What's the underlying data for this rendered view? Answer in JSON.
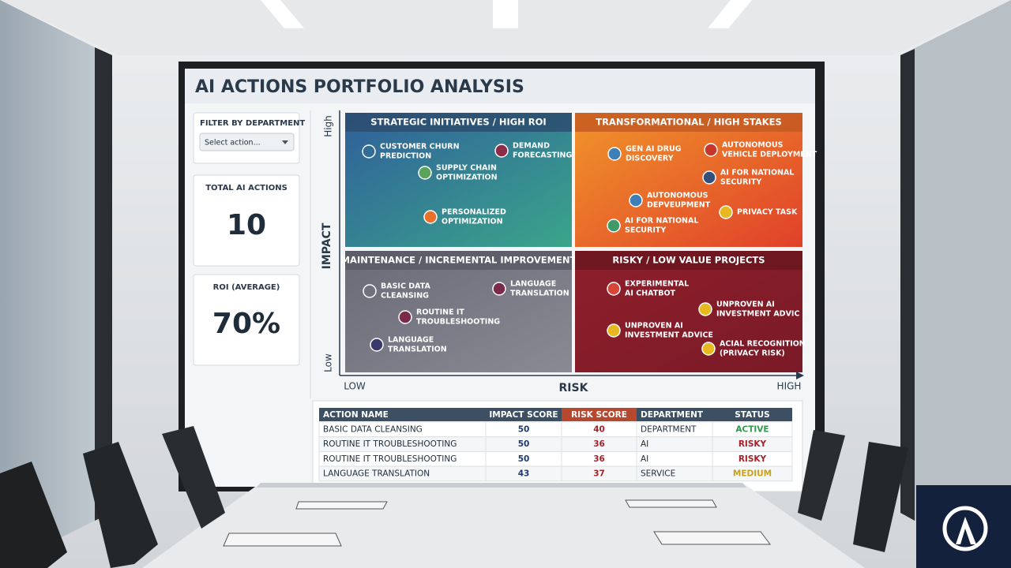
{
  "header": {
    "title": "AI ACTIONS PORTFOLIO ANALYSIS"
  },
  "filter": {
    "label": "FILTER BY DEPARTMENT",
    "placeholder": "Select action..."
  },
  "cards": [
    {
      "label": "TOTAL AI ACTIONS",
      "value": "10"
    },
    {
      "label": "ROI (AVERAGE)",
      "value": "70%"
    }
  ],
  "matrix": {
    "y_axis": {
      "label": "IMPACT",
      "high": "High",
      "low": "Low"
    },
    "x_axis": {
      "label": "RISK",
      "low": "LOW",
      "high": "HIGH"
    },
    "quadrants": [
      {
        "title": "STRATEGIC INITIATIVES / HIGH ROI",
        "items": [
          {
            "label": [
              "CUSTOMER CHURN",
              "PREDICTION"
            ],
            "color": "none"
          },
          {
            "label": [
              "DEMAND",
              "FORECASTING"
            ],
            "color": "#8e2a4a"
          },
          {
            "label": [
              "SUPPLY CHAIN",
              "OPTIMIZATION"
            ],
            "color": "#5aa35a"
          },
          {
            "label": [
              "PERSONALIZED",
              "OPTIMIZATION"
            ],
            "color": "#e8702a"
          }
        ]
      },
      {
        "title": "TRANSFORMATIONAL / HIGH STAKES",
        "items": [
          {
            "label": [
              "GEN AI DRUG",
              "DISCOVERY"
            ],
            "color": "#3f7fb8"
          },
          {
            "label": [
              "AUTONOMOUS",
              "VEHICLE DEPLOYMENT"
            ],
            "color": "#c8352a"
          },
          {
            "label": [
              "AI FOR NATIONAL",
              "SECURITY"
            ],
            "color": "#34507a"
          },
          {
            "label": [
              "AUTONOMOUS",
              "DEPVEUPMENT"
            ],
            "color": "#3f7fb8"
          },
          {
            "label": [
              "AI FOR NATIONAL",
              "SECURITY"
            ],
            "color": "#3f9a6a"
          },
          {
            "label": [
              "PRIVACY TASK"
            ],
            "color": "#e8b820"
          }
        ]
      },
      {
        "title": "MAINTENANCE / INCREMENTAL IMPROVEMENT",
        "items": [
          {
            "label": [
              "BASIC DATA",
              "CLEANSING"
            ],
            "color": "none"
          },
          {
            "label": [
              "LANGUAGE",
              "TRANSLATION"
            ],
            "color": "#7a2a4a"
          },
          {
            "label": [
              "ROUTINE IT",
              "TROUBLESHOOTING"
            ],
            "color": "#7a2a4a"
          },
          {
            "label": [
              "LANGUAGE",
              "TRANSLATION"
            ],
            "color": "#3a3a6a"
          }
        ]
      },
      {
        "title": "RISKY / LOW VALUE PROJECTS",
        "items": [
          {
            "label": [
              "EXPERIMENTAL",
              "AI CHATBOT"
            ],
            "color": "#d8463a"
          },
          {
            "label": [
              "UNPROVEN AI",
              "INVESTMENT ADVIC"
            ],
            "color": "#e8b820"
          },
          {
            "label": [
              "UNPROVEN AI",
              "INVESTMENT ADVICE"
            ],
            "color": "#e8b820"
          },
          {
            "label": [
              "ACIAL RECOGNITION",
              "(PRIVACY RISK)"
            ],
            "color": "#e8b820"
          }
        ]
      }
    ]
  },
  "table": {
    "columns": [
      "ACTION NAME",
      "IMPACT SCORE",
      "RISK SCORE",
      "DEPARTMENT",
      "STATUS"
    ],
    "rows": [
      [
        "BASIC DATA CLEANSING",
        50,
        40,
        "DEPARTMENT",
        "ACTIVE"
      ],
      [
        "ROUTINE IT TROUBLESHOOTING",
        50,
        36,
        "AI",
        "RISKY"
      ],
      [
        "ROUTINE IT TROUBLESHOOTING",
        50,
        36,
        "AI",
        "RISKY"
      ],
      [
        "LANGUAGE TRANSLATION",
        43,
        37,
        "SERVICE",
        "MEDIUM"
      ]
    ]
  }
}
